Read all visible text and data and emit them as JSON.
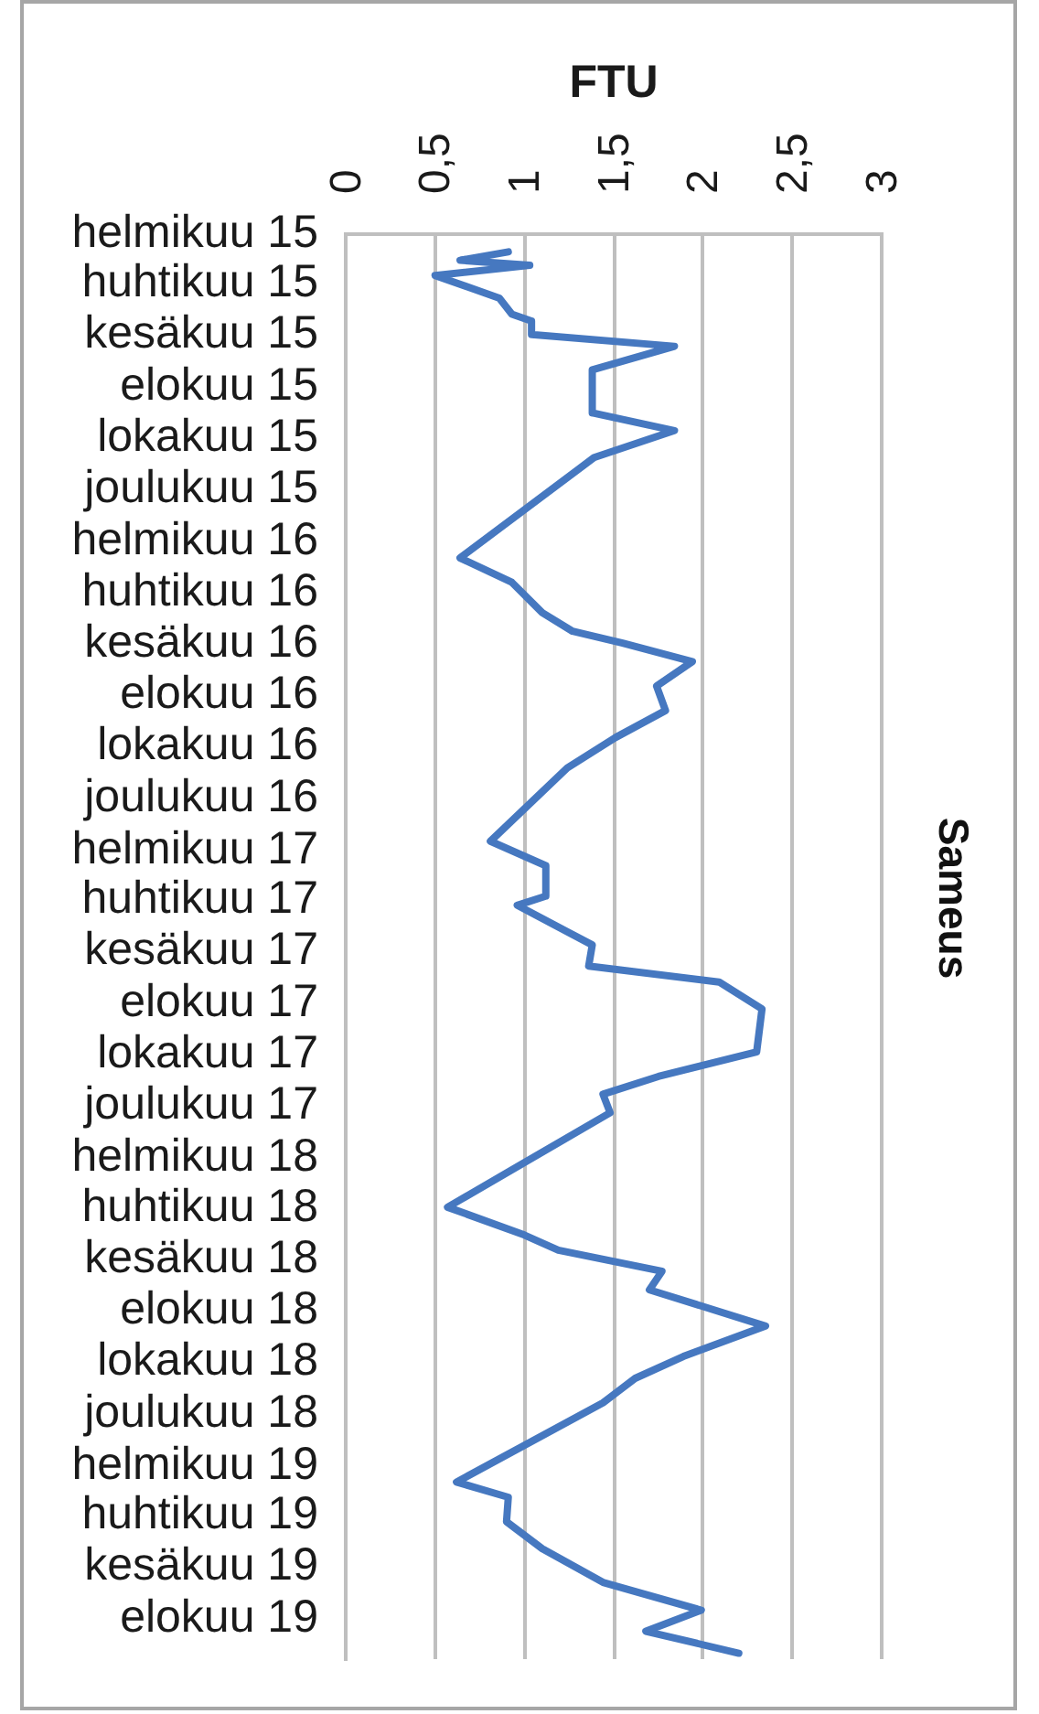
{
  "chart_data": {
    "type": "line",
    "orientation": "horizontal",
    "title": "Sameus",
    "xlabel": "FTU",
    "x": [
      "2015-02-22",
      "2015-03-04",
      "2015-03-10",
      "2015-03-22",
      "2015-04-18",
      "2015-05-07",
      "2015-05-15",
      "2015-05-31",
      "2015-06-14",
      "2015-07-12",
      "2015-09-01",
      "2015-09-22",
      "2015-10-24",
      "2016-02-20",
      "2016-03-20",
      "2016-04-25",
      "2016-05-17",
      "2016-05-31",
      "2016-06-22",
      "2016-07-21",
      "2016-08-19",
      "2016-09-20",
      "2016-10-26",
      "2017-01-21",
      "2017-02-19",
      "2017-03-27",
      "2017-04-07",
      "2017-05-24",
      "2017-06-18",
      "2017-07-07",
      "2017-08-08",
      "2017-09-28",
      "2017-10-27",
      "2017-11-17",
      "2017-12-09",
      "2018-03-31",
      "2018-05-03",
      "2018-05-21",
      "2018-06-15",
      "2018-07-07",
      "2018-08-19",
      "2018-09-24",
      "2018-10-20",
      "2018-11-18",
      "2019-02-20",
      "2019-03-10",
      "2019-04-08",
      "2019-05-10",
      "2019-06-19",
      "2019-07-22",
      "2019-08-16",
      "2019-09-11"
    ],
    "series": [
      {
        "color": "#4678c0",
        "values": [
          0.91,
          0.64,
          1.03,
          0.5,
          0.86,
          0.93,
          1.04,
          1.04,
          1.84,
          1.38,
          1.38,
          1.84,
          1.39,
          0.64,
          0.93,
          1.1,
          1.27,
          1.55,
          1.94,
          1.74,
          1.79,
          1.51,
          1.24,
          0.81,
          1.12,
          1.12,
          0.96,
          1.38,
          1.36,
          2.09,
          2.33,
          2.3,
          1.75,
          1.44,
          1.48,
          0.57,
          1.0,
          1.19,
          1.77,
          1.7,
          2.35,
          1.89,
          1.62,
          1.44,
          0.62,
          0.91,
          0.9,
          1.1,
          1.44,
          1.99,
          1.68,
          2.2
        ]
      }
    ],
    "xlim": [
      0,
      3
    ],
    "xticks": [
      0,
      {
        "value": 0.5,
        "label": "0,5"
      },
      1,
      {
        "value": 1.5,
        "label": "1,5"
      },
      2,
      {
        "value": 2.5,
        "label": "2,5"
      },
      3
    ],
    "ylim": [
      "2019-09-18",
      "2015-02-01"
    ],
    "yticks": [
      {
        "value": "2015-02",
        "label": "helmikuu 15"
      },
      {
        "value": "2015-04",
        "label": "huhtikuu 15"
      },
      {
        "value": "2015-06",
        "label": "kesäkuu 15"
      },
      {
        "value": "2015-08",
        "label": "elokuu 15"
      },
      {
        "value": "2015-10",
        "label": "lokakuu 15"
      },
      {
        "value": "2015-12",
        "label": "joulukuu 15"
      },
      {
        "value": "2016-02",
        "label": "helmikuu 16"
      },
      {
        "value": "2016-04",
        "label": "huhtikuu 16"
      },
      {
        "value": "2016-06",
        "label": "kesäkuu 16"
      },
      {
        "value": "2016-08",
        "label": "elokuu 16"
      },
      {
        "value": "2016-10",
        "label": "lokakuu 16"
      },
      {
        "value": "2016-12",
        "label": "joulukuu 16"
      },
      {
        "value": "2017-02",
        "label": "helmikuu 17"
      },
      {
        "value": "2017-04",
        "label": "huhtikuu 17"
      },
      {
        "value": "2017-06",
        "label": "kesäkuu 17"
      },
      {
        "value": "2017-08",
        "label": "elokuu 17"
      },
      {
        "value": "2017-10",
        "label": "lokakuu 17"
      },
      {
        "value": "2017-12",
        "label": "joulukuu 17"
      },
      {
        "value": "2018-02",
        "label": "helmikuu 18"
      },
      {
        "value": "2018-04",
        "label": "huhtikuu 18"
      },
      {
        "value": "2018-06",
        "label": "kesäkuu 18"
      },
      {
        "value": "2018-08",
        "label": "elokuu 18"
      },
      {
        "value": "2018-10",
        "label": "lokakuu 18"
      },
      {
        "value": "2018-12",
        "label": "joulukuu 18"
      },
      {
        "value": "2019-02",
        "label": "helmikuu 19"
      },
      {
        "value": "2019-04",
        "label": "huhtikuu 19"
      },
      {
        "value": "2019-06",
        "label": "kesäkuu 19"
      },
      {
        "value": "2019-08",
        "label": "elokuu 19"
      }
    ],
    "grid": "x",
    "marker": "none",
    "line_style": "solid"
  }
}
